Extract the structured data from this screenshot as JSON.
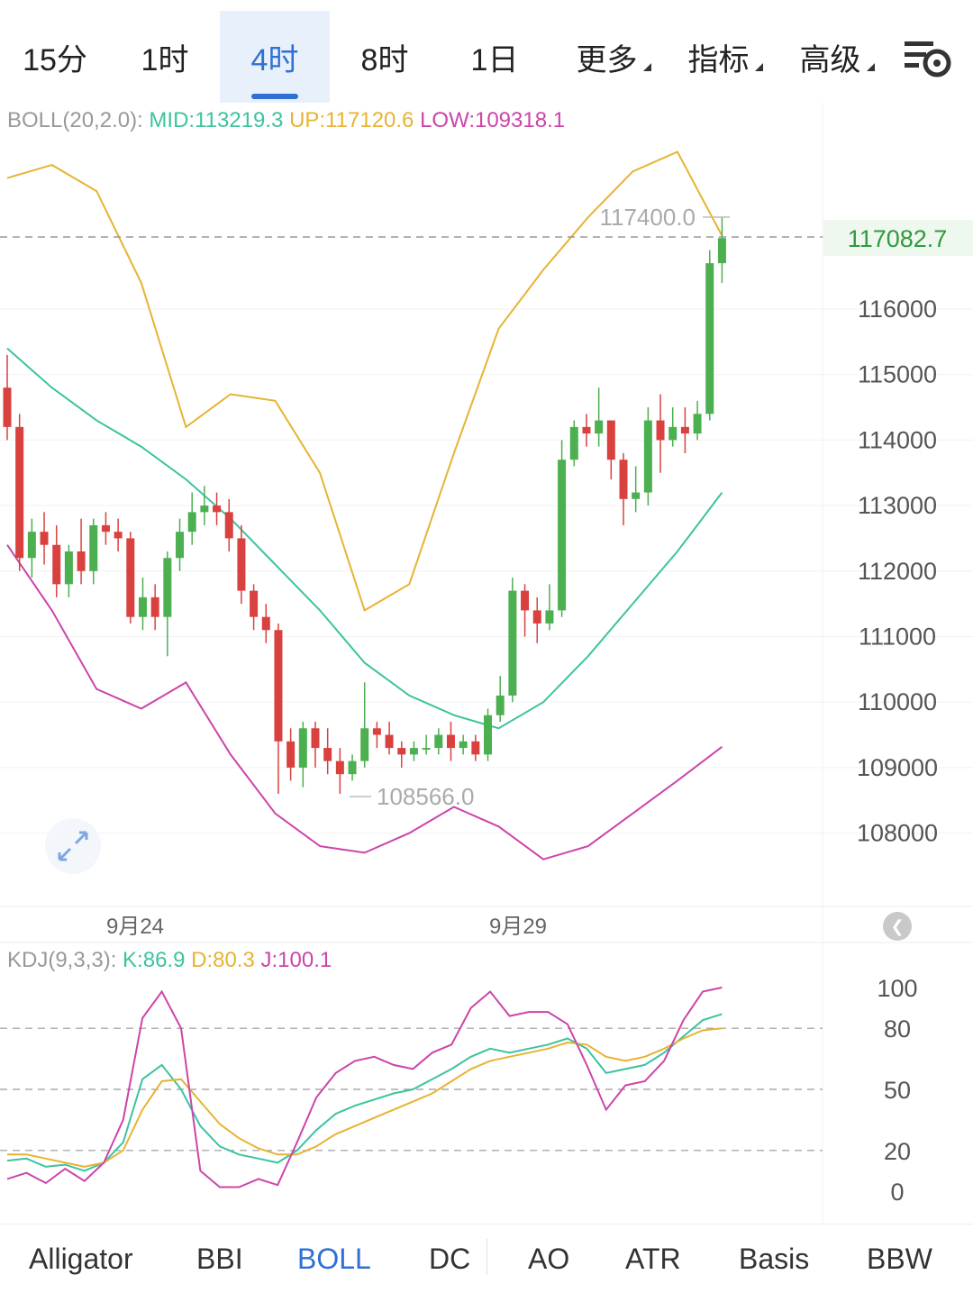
{
  "timeframe_tabs": [
    {
      "label": "15分"
    },
    {
      "label": "1时"
    },
    {
      "label": "4时",
      "active": true
    },
    {
      "label": "8时"
    },
    {
      "label": "1日"
    },
    {
      "label": "更多"
    },
    {
      "label": "指标"
    },
    {
      "label": "高级"
    }
  ],
  "boll_legend": {
    "name": "BOLL(20,2.0):",
    "mid": "MID:113219.3",
    "up": "UP:117120.6",
    "low": "LOW:109318.1"
  },
  "kdj_legend": {
    "name": "KDJ(9,3,3):",
    "k": "K:86.9",
    "d": "D:80.3",
    "j": "J:100.1"
  },
  "price_axis": {
    "labels": [
      "116000",
      "115000",
      "114000",
      "113000",
      "112000",
      "111000",
      "110000",
      "109000",
      "108000"
    ]
  },
  "current_price": "117082.7",
  "high_marker": "117400.0",
  "low_marker": "108566.0",
  "date_labels": [
    "9月24",
    "9月29"
  ],
  "kdj_axis": {
    "labels": [
      "100",
      "80",
      "50",
      "20",
      "0"
    ]
  },
  "indicator_tabs": [
    {
      "label": "Alligator"
    },
    {
      "label": "BBI"
    },
    {
      "label": "BOLL",
      "active": true
    },
    {
      "label": "DC"
    },
    {
      "label": "AO"
    },
    {
      "label": "ATR"
    },
    {
      "label": "Basis"
    },
    {
      "label": "BBW"
    }
  ],
  "colors": {
    "up": "#4caf50",
    "down": "#d9413f",
    "mid": "#3cc3a0",
    "upper": "#e8b332",
    "lower": "#cc44aa",
    "accent": "#2f6fd6"
  },
  "chart_data": [
    {
      "type": "candlestick",
      "title": "BOLL(20,2.0)",
      "x_labels": [
        "9月24",
        "9月29"
      ],
      "ylim": [
        107300,
        118300
      ],
      "candles": [
        [
          114800,
          114200,
          115300,
          114000
        ],
        [
          114200,
          112200,
          114400,
          112000
        ],
        [
          112200,
          112600,
          112800,
          111900
        ],
        [
          112600,
          112400,
          112900,
          112100
        ],
        [
          112400,
          111800,
          112700,
          111600
        ],
        [
          111800,
          112300,
          112400,
          111600
        ],
        [
          112300,
          112000,
          112800,
          111800
        ],
        [
          112000,
          112700,
          112800,
          111800
        ],
        [
          112700,
          112600,
          112900,
          112400
        ],
        [
          112600,
          112500,
          112800,
          112300
        ],
        [
          112500,
          111300,
          112600,
          111200
        ],
        [
          111300,
          111600,
          111900,
          111100
        ],
        [
          111600,
          111300,
          111800,
          111100
        ],
        [
          111300,
          112200,
          112300,
          110700
        ],
        [
          112200,
          112600,
          112800,
          112000
        ],
        [
          112600,
          112900,
          113200,
          112400
        ],
        [
          112900,
          113000,
          113300,
          112700
        ],
        [
          113000,
          112900,
          113200,
          112700
        ],
        [
          112900,
          112500,
          113100,
          112300
        ],
        [
          112500,
          111700,
          112700,
          111500
        ],
        [
          111700,
          111300,
          111800,
          111100
        ],
        [
          111300,
          111100,
          111500,
          110900
        ],
        [
          111100,
          109400,
          111200,
          108600
        ],
        [
          109400,
          109000,
          109600,
          108800
        ],
        [
          109000,
          109600,
          109700,
          108700
        ],
        [
          109600,
          109300,
          109700,
          109000
        ],
        [
          109300,
          109100,
          109600,
          108900
        ],
        [
          109100,
          108900,
          109300,
          108600
        ],
        [
          108900,
          109100,
          109200,
          108800
        ],
        [
          109100,
          109600,
          110300,
          109000
        ],
        [
          109600,
          109500,
          109700,
          109300
        ],
        [
          109500,
          109300,
          109700,
          109200
        ],
        [
          109300,
          109200,
          109400,
          109000
        ],
        [
          109200,
          109300,
          109400,
          109100
        ],
        [
          109300,
          109300,
          109500,
          109200
        ],
        [
          109300,
          109500,
          109600,
          109200
        ],
        [
          109500,
          109300,
          109700,
          109100
        ],
        [
          109300,
          109400,
          109500,
          109200
        ],
        [
          109400,
          109200,
          109500,
          109100
        ],
        [
          109200,
          109800,
          109900,
          109100
        ],
        [
          109800,
          110100,
          110400,
          109700
        ],
        [
          110100,
          111700,
          111900,
          110000
        ],
        [
          111700,
          111400,
          111800,
          111000
        ],
        [
          111400,
          111200,
          111600,
          110900
        ],
        [
          111200,
          111400,
          111800,
          111100
        ],
        [
          111400,
          113700,
          114000,
          111300
        ],
        [
          113700,
          114200,
          114300,
          113600
        ],
        [
          114200,
          114100,
          114400,
          113900
        ],
        [
          114100,
          114300,
          114800,
          113900
        ],
        [
          114300,
          113700,
          114300,
          113400
        ],
        [
          113700,
          113100,
          113800,
          112700
        ],
        [
          113100,
          113200,
          113600,
          112900
        ],
        [
          113200,
          114300,
          114500,
          113000
        ],
        [
          114300,
          114000,
          114700,
          113500
        ],
        [
          114000,
          114200,
          114500,
          113900
        ],
        [
          114200,
          114100,
          114500,
          113800
        ],
        [
          114100,
          114400,
          114600,
          114000
        ],
        [
          114400,
          116700,
          116900,
          114300
        ],
        [
          116700,
          117083,
          117400,
          116400
        ]
      ],
      "mid": [
        [
          0,
          115400
        ],
        [
          5,
          114800
        ],
        [
          10,
          114300
        ],
        [
          15,
          113900
        ],
        [
          20,
          113400
        ],
        [
          25,
          112800
        ],
        [
          30,
          112100
        ],
        [
          35,
          111400
        ],
        [
          40,
          110600
        ],
        [
          45,
          110100
        ],
        [
          50,
          109800
        ],
        [
          55,
          109600
        ],
        [
          60,
          110000
        ],
        [
          65,
          110700
        ],
        [
          70,
          111500
        ],
        [
          75,
          112300
        ],
        [
          80,
          113200
        ]
      ],
      "upper": [
        [
          0,
          118000
        ],
        [
          5,
          118200
        ],
        [
          10,
          117800
        ],
        [
          15,
          116400
        ],
        [
          20,
          114200
        ],
        [
          25,
          114700
        ],
        [
          30,
          114600
        ],
        [
          35,
          113500
        ],
        [
          40,
          111400
        ],
        [
          45,
          111800
        ],
        [
          50,
          113800
        ],
        [
          55,
          115700
        ],
        [
          60,
          116600
        ],
        [
          65,
          117400
        ],
        [
          70,
          118100
        ],
        [
          75,
          118400
        ],
        [
          80,
          117120
        ]
      ],
      "lower": [
        [
          0,
          112400
        ],
        [
          5,
          111400
        ],
        [
          10,
          110200
        ],
        [
          15,
          109900
        ],
        [
          20,
          110300
        ],
        [
          25,
          109200
        ],
        [
          30,
          108300
        ],
        [
          35,
          107800
        ],
        [
          40,
          107700
        ],
        [
          45,
          108000
        ],
        [
          50,
          108400
        ],
        [
          55,
          108100
        ],
        [
          60,
          107600
        ],
        [
          65,
          107800
        ],
        [
          70,
          108300
        ],
        [
          75,
          108800
        ],
        [
          80,
          109318
        ]
      ]
    },
    {
      "type": "line",
      "title": "KDJ(9,3,3)",
      "ylim": [
        0,
        100
      ],
      "series": [
        {
          "name": "K",
          "values": [
            15,
            16,
            12,
            13,
            10,
            14,
            24,
            55,
            62,
            50,
            32,
            22,
            18,
            16,
            14,
            20,
            30,
            38,
            42,
            45,
            48,
            50,
            55,
            60,
            66,
            70,
            68,
            70,
            72,
            75,
            70,
            58,
            60,
            62,
            68,
            76,
            84,
            87
          ]
        },
        {
          "name": "D",
          "values": [
            18,
            18,
            16,
            14,
            12,
            14,
            20,
            40,
            54,
            55,
            44,
            33,
            26,
            21,
            18,
            18,
            22,
            28,
            32,
            36,
            40,
            44,
            48,
            54,
            60,
            64,
            66,
            68,
            70,
            73,
            72,
            66,
            64,
            66,
            70,
            75,
            79,
            80
          ]
        },
        {
          "name": "J",
          "values": [
            6,
            9,
            4,
            11,
            5,
            14,
            35,
            85,
            98,
            80,
            10,
            2,
            2,
            6,
            3,
            24,
            46,
            58,
            64,
            66,
            62,
            60,
            68,
            72,
            90,
            98,
            86,
            88,
            88,
            82,
            62,
            40,
            52,
            54,
            64,
            84,
            98,
            100
          ]
        }
      ]
    }
  ]
}
